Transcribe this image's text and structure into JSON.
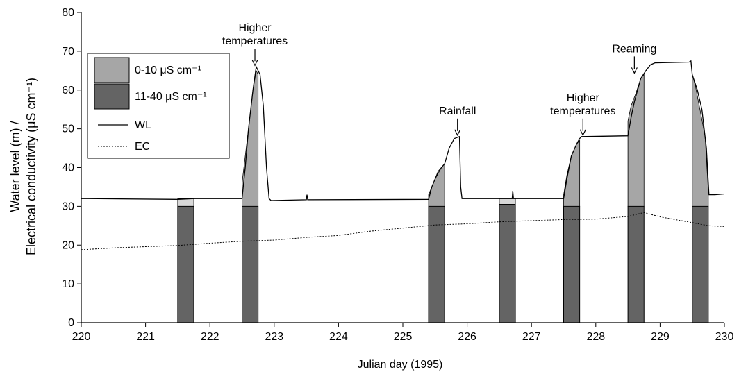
{
  "chart_data": {
    "type": "bar+line",
    "xlabel": "Julian day (1995)",
    "ylabel_line1": "Water level (m) /",
    "ylabel_line2": "Electrical conductivity (μS cm⁻¹)",
    "xlim": [
      220,
      230
    ],
    "ylim": [
      0,
      80
    ],
    "xticks": [
      220,
      221,
      222,
      223,
      224,
      225,
      226,
      227,
      228,
      229,
      230
    ],
    "yticks": [
      0,
      10,
      20,
      30,
      40,
      50,
      60,
      70,
      80
    ],
    "colors": {
      "light_bar": "#a6a6a6",
      "dark_bar": "#646464",
      "pale_bar": "#d8d8d8"
    },
    "legend": {
      "placement": "top-left",
      "items": [
        {
          "label": "0-10 μS cm⁻¹",
          "kind": "light-bar"
        },
        {
          "label": "11-40 μS cm⁻¹",
          "kind": "dark-bar"
        },
        {
          "label": "WL",
          "kind": "solid-line"
        },
        {
          "label": "EC",
          "kind": "dashed-line"
        }
      ]
    },
    "annotations": [
      {
        "lines": [
          "Higher",
          "temperatures"
        ],
        "x": 222.7,
        "y": 66
      },
      {
        "lines": [
          "Rainfall"
        ],
        "x": 225.85,
        "y": 48
      },
      {
        "lines": [
          "Higher",
          "temperatures"
        ],
        "x": 227.8,
        "y": 48
      },
      {
        "lines": [
          "Reaming"
        ],
        "x": 228.6,
        "y": 64
      }
    ],
    "bars": [
      {
        "x0": 221.5,
        "x1": 221.75,
        "dark": 30,
        "light_top": 32,
        "pale": true
      },
      {
        "x0": 222.5,
        "x1": 222.75,
        "dark": 30,
        "light_top": 65,
        "profile": [
          [
            222.5,
            36
          ],
          [
            222.6,
            50
          ],
          [
            222.67,
            60
          ],
          [
            222.72,
            65
          ],
          [
            222.75,
            64
          ]
        ]
      },
      {
        "x0": 225.4,
        "x1": 225.65,
        "dark": 30,
        "light_top": 41,
        "profile": [
          [
            225.4,
            33
          ],
          [
            225.5,
            37
          ],
          [
            225.6,
            40
          ],
          [
            225.65,
            41
          ]
        ]
      },
      {
        "x0": 226.5,
        "x1": 226.75,
        "dark": 30.5,
        "light_top": 32,
        "pale": true
      },
      {
        "x0": 227.5,
        "x1": 227.75,
        "dark": 30,
        "light_top": 47,
        "profile": [
          [
            227.5,
            33
          ],
          [
            227.55,
            38
          ],
          [
            227.62,
            43
          ],
          [
            227.7,
            46
          ],
          [
            227.75,
            47
          ]
        ]
      },
      {
        "x0": 228.5,
        "x1": 228.75,
        "dark": 30,
        "light_top": 64,
        "profile": [
          [
            228.5,
            52
          ],
          [
            228.55,
            56
          ],
          [
            228.62,
            59
          ],
          [
            228.7,
            63
          ],
          [
            228.75,
            64
          ]
        ]
      },
      {
        "x0": 229.5,
        "x1": 229.75,
        "dark": 30,
        "light_top": 62,
        "profile": [
          [
            229.5,
            64
          ],
          [
            229.55,
            61
          ],
          [
            229.62,
            55
          ],
          [
            229.7,
            48
          ],
          [
            229.75,
            34
          ]
        ]
      }
    ],
    "series": [
      {
        "name": "WL",
        "style": "solid",
        "points": [
          [
            220,
            32
          ],
          [
            221.5,
            31.8
          ],
          [
            221.75,
            32
          ],
          [
            222.5,
            32
          ],
          [
            222.55,
            40
          ],
          [
            222.6,
            50
          ],
          [
            222.67,
            60
          ],
          [
            222.72,
            66
          ],
          [
            222.78,
            64
          ],
          [
            222.83,
            56
          ],
          [
            222.88,
            40
          ],
          [
            222.92,
            32
          ],
          [
            222.95,
            31.5
          ],
          [
            223.5,
            31.7
          ],
          [
            223.51,
            33
          ],
          [
            223.52,
            31.7
          ],
          [
            225.4,
            31.8
          ],
          [
            225.45,
            35
          ],
          [
            225.55,
            39
          ],
          [
            225.65,
            41
          ],
          [
            225.72,
            45
          ],
          [
            225.8,
            47.5
          ],
          [
            225.88,
            48
          ],
          [
            225.9,
            35
          ],
          [
            225.92,
            32
          ],
          [
            226.7,
            32
          ],
          [
            226.71,
            34
          ],
          [
            226.72,
            32
          ],
          [
            227.5,
            32
          ],
          [
            227.55,
            37
          ],
          [
            227.62,
            43
          ],
          [
            227.7,
            46
          ],
          [
            227.75,
            47.5
          ],
          [
            227.78,
            48
          ],
          [
            228.5,
            48.2
          ],
          [
            228.55,
            53
          ],
          [
            228.6,
            57
          ],
          [
            228.7,
            63
          ],
          [
            228.78,
            65
          ],
          [
            228.85,
            66.5
          ],
          [
            228.92,
            67
          ],
          [
            229.45,
            67.2
          ],
          [
            229.48,
            67.5
          ],
          [
            229.5,
            64
          ],
          [
            229.58,
            60
          ],
          [
            229.65,
            55
          ],
          [
            229.72,
            45
          ],
          [
            229.76,
            33
          ],
          [
            229.85,
            33
          ],
          [
            230,
            33.2
          ]
        ]
      },
      {
        "name": "EC",
        "style": "dashed",
        "points": [
          [
            220,
            18.8
          ],
          [
            220.5,
            19.3
          ],
          [
            221,
            19.6
          ],
          [
            221.5,
            19.9
          ],
          [
            222,
            20.5
          ],
          [
            222.5,
            21
          ],
          [
            223,
            21.3
          ],
          [
            223.5,
            22
          ],
          [
            224,
            22.5
          ],
          [
            224.5,
            23.6
          ],
          [
            225,
            24.4
          ],
          [
            225.5,
            25.2
          ],
          [
            226,
            25.5
          ],
          [
            226.5,
            26
          ],
          [
            227,
            26.3
          ],
          [
            227.5,
            26.6
          ],
          [
            228,
            26.7
          ],
          [
            228.5,
            27.4
          ],
          [
            228.75,
            28.4
          ],
          [
            229,
            27.3
          ],
          [
            229.5,
            25.8
          ],
          [
            229.75,
            25
          ],
          [
            230,
            24.8
          ]
        ]
      }
    ]
  }
}
